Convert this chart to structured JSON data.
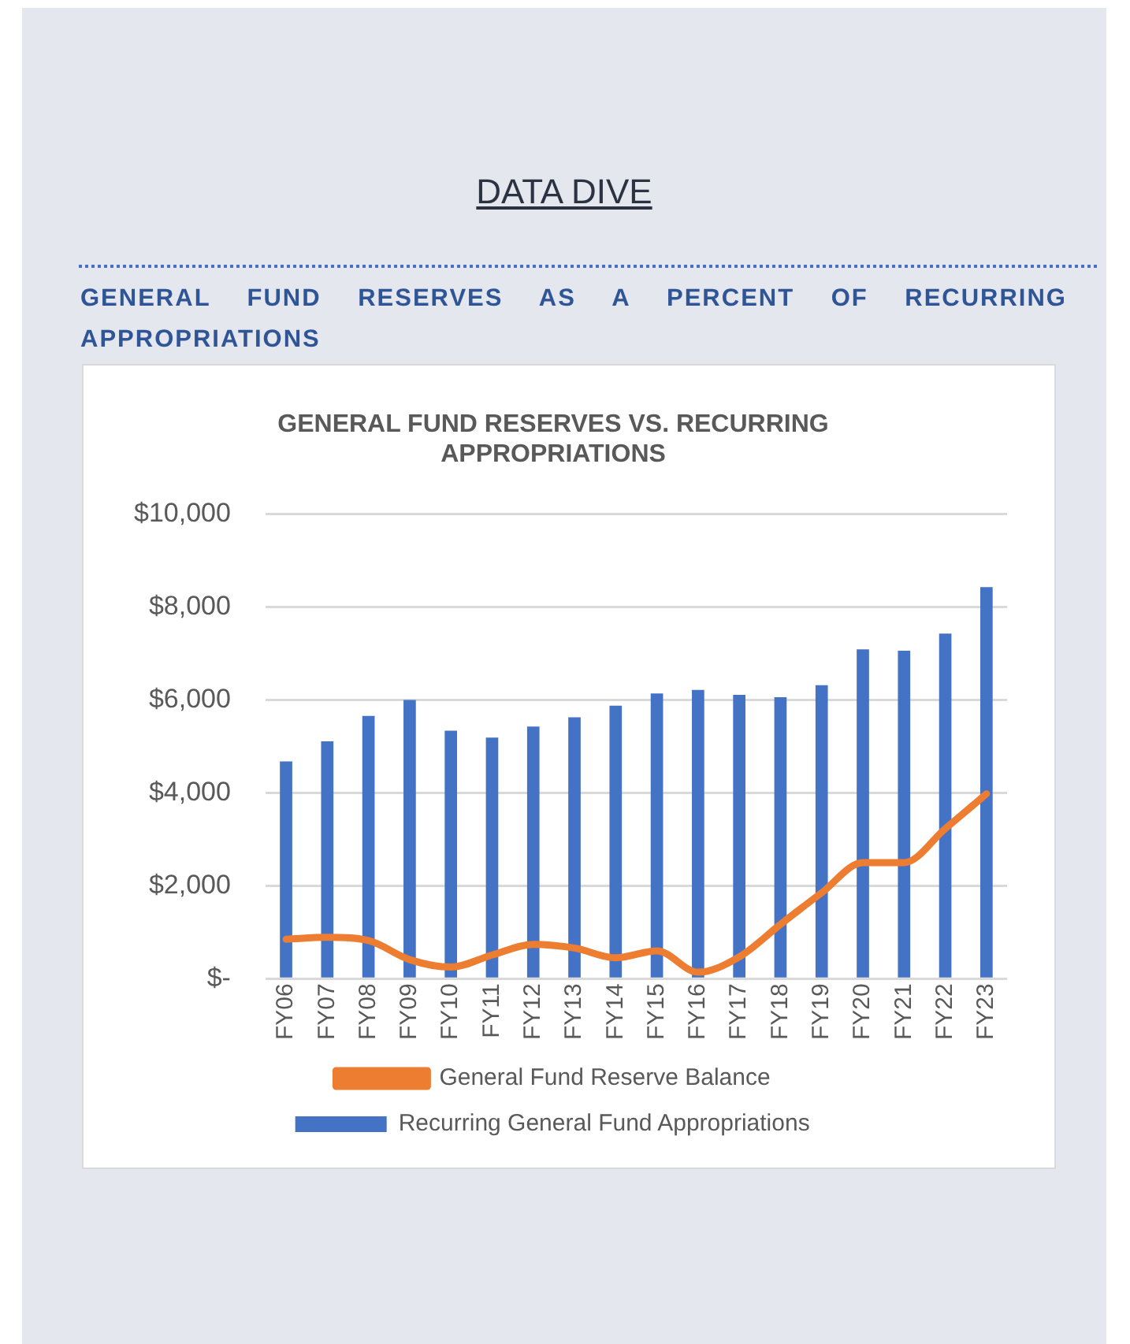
{
  "chart_data": {
    "type": "bar",
    "title": "GENERAL FUND RESERVES VS. RECURRING APPROPRIATIONS",
    "subtitle": "GENERAL FUND RESERVES AS A PERCENT OF RECURRING APPROPRIATIONS",
    "annotations": [
      "DATA DIVE"
    ],
    "categories": [
      "FY06",
      "FY07",
      "FY08",
      "FY09",
      "FY10",
      "FY11",
      "FY12",
      "FY13",
      "FY14",
      "FY15",
      "FY16",
      "FY17",
      "FY18",
      "FY19",
      "FY20",
      "FY21",
      "FY22",
      "FY23"
    ],
    "series": [
      {
        "name": "Recurring General Fund Appropriations",
        "color": "#4472c4",
        "values": [
          4680,
          5110,
          5660,
          6000,
          5340,
          5190,
          5430,
          5630,
          5880,
          6140,
          6220,
          6110,
          6060,
          6320,
          7090,
          7060,
          7430,
          8430
        ]
      },
      {
        "name": "General Fund Reserve Balance",
        "type": "line",
        "color": "#ed7d31",
        "values": [
          850,
          890,
          820,
          410,
          250,
          510,
          740,
          660,
          450,
          600,
          140,
          470,
          1170,
          1850,
          2500,
          2500,
          3230,
          3980
        ]
      }
    ],
    "ylim": [
      0,
      10000
    ],
    "yticks": [
      {
        "value": 0,
        "label": "$-"
      },
      {
        "value": 2000,
        "label": "$2,000"
      },
      {
        "value": 4000,
        "label": "$4,000"
      },
      {
        "value": 6000,
        "label": "$6,000"
      },
      {
        "value": 8000,
        "label": "$8,000"
      },
      {
        "value": 10000,
        "label": "$10,000"
      }
    ],
    "grid": "y",
    "legend": "bottom",
    "marker": "none",
    "line_style": "solid"
  }
}
